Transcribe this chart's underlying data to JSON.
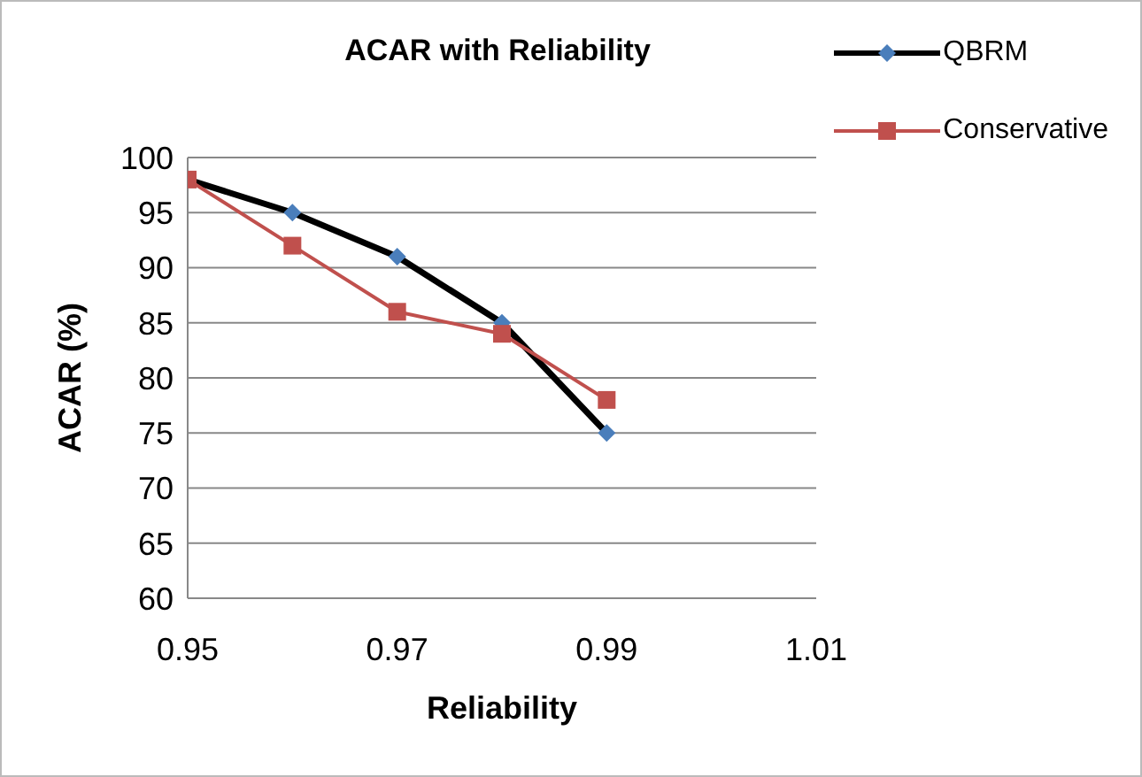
{
  "chart_data": {
    "type": "line",
    "title": "ACAR with Reliability",
    "xlabel": "Reliability",
    "ylabel": "ACAR (%)",
    "x": [
      0.95,
      0.96,
      0.97,
      0.98,
      0.99
    ],
    "series": [
      {
        "name": "QBRM",
        "color": "#000000",
        "colors": [
          "#4a7ebb",
          "#4a7ebb",
          "#4a7ebb",
          "#4a7ebb",
          "#4a7ebb"
        ],
        "marker": "diamond",
        "values": [
          98,
          95,
          91,
          85,
          75
        ]
      },
      {
        "name": "Conservative",
        "color": "#c0504d",
        "marker": "square",
        "values": [
          98,
          92,
          86,
          84,
          78
        ]
      }
    ],
    "xlim": [
      0.95,
      1.01
    ],
    "xticks": [
      0.95,
      0.97,
      0.99,
      1.01
    ],
    "ylim": [
      60,
      100
    ],
    "yticks": [
      60,
      65,
      70,
      75,
      80,
      85,
      90,
      95,
      100
    ],
    "grid": "y",
    "legend": "top right",
    "line_style": "solid"
  }
}
